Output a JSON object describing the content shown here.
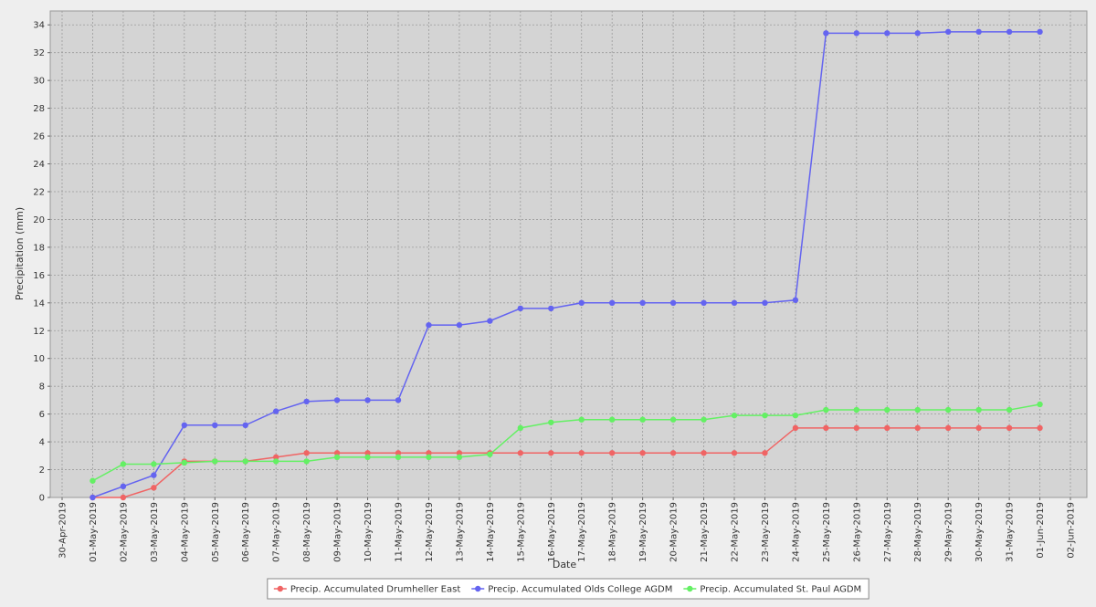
{
  "chart_data": {
    "type": "line",
    "x_label": "Date",
    "y_label": "Precipitation (mm)",
    "categories": [
      "30-Apr-2019",
      "01-May-2019",
      "02-May-2019",
      "03-May-2019",
      "04-May-2019",
      "05-May-2019",
      "06-May-2019",
      "07-May-2019",
      "08-May-2019",
      "09-May-2019",
      "10-May-2019",
      "11-May-2019",
      "12-May-2019",
      "13-May-2019",
      "14-May-2019",
      "15-May-2019",
      "16-May-2019",
      "17-May-2019",
      "18-May-2019",
      "19-May-2019",
      "20-May-2019",
      "21-May-2019",
      "22-May-2019",
      "23-May-2019",
      "24-May-2019",
      "25-May-2019",
      "26-May-2019",
      "27-May-2019",
      "28-May-2019",
      "29-May-2019",
      "30-May-2019",
      "31-May-2019",
      "01-Jun-2019",
      "02-Jun-2019"
    ],
    "series": [
      {
        "name": "Precip. Accumulated Drumheller East",
        "color": "#f06464",
        "values": [
          null,
          0,
          0,
          0.7,
          2.6,
          2.6,
          2.6,
          2.9,
          3.2,
          3.2,
          3.2,
          3.2,
          3.2,
          3.2,
          3.2,
          3.2,
          3.2,
          3.2,
          3.2,
          3.2,
          3.2,
          3.2,
          3.2,
          3.2,
          5.0,
          5.0,
          5.0,
          5.0,
          5.0,
          5.0,
          5.0,
          5.0,
          5.0,
          null
        ]
      },
      {
        "name": "Precip. Accumulated Olds College AGDM",
        "color": "#6464f0",
        "values": [
          null,
          0,
          0.8,
          1.6,
          5.2,
          5.2,
          5.2,
          6.2,
          6.9,
          7.0,
          7.0,
          7.0,
          12.4,
          12.4,
          12.7,
          13.6,
          13.6,
          14.0,
          14.0,
          14.0,
          14.0,
          14.0,
          14.0,
          14.0,
          14.2,
          33.4,
          33.4,
          33.4,
          33.4,
          33.5,
          33.5,
          33.5,
          33.5,
          null
        ]
      },
      {
        "name": "Precip. Accumulated St. Paul AGDM",
        "color": "#64f064",
        "values": [
          null,
          1.2,
          2.4,
          2.4,
          2.5,
          2.6,
          2.6,
          2.6,
          2.6,
          2.9,
          2.9,
          2.9,
          2.9,
          2.9,
          3.1,
          5.0,
          5.4,
          5.6,
          5.6,
          5.6,
          5.6,
          5.6,
          5.9,
          5.9,
          5.9,
          6.3,
          6.3,
          6.3,
          6.3,
          6.3,
          6.3,
          6.3,
          6.7,
          null
        ]
      }
    ],
    "ylim": [
      0,
      35
    ],
    "yticks": [
      0,
      2,
      4,
      6,
      8,
      10,
      12,
      14,
      16,
      18,
      20,
      22,
      24,
      26,
      28,
      30,
      32,
      34
    ],
    "grid": true,
    "legend": "bottom"
  }
}
